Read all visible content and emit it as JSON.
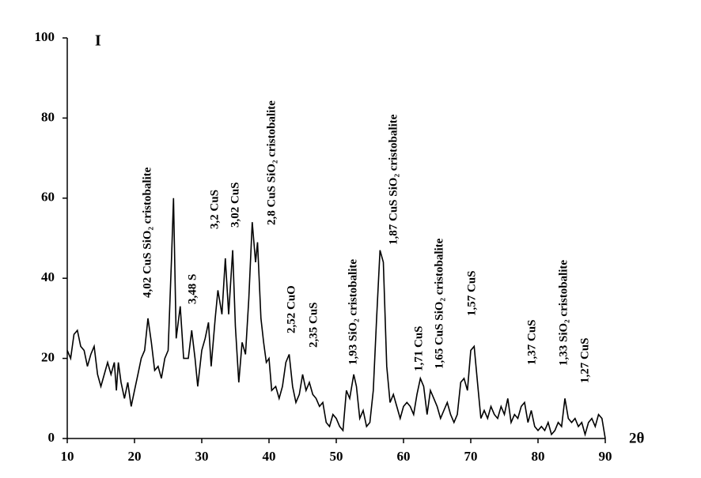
{
  "chart_data": {
    "type": "line",
    "y_label": "I",
    "x_label": "2θ",
    "xlim": [
      10,
      90
    ],
    "xticks": [
      10,
      20,
      30,
      40,
      50,
      60,
      70,
      80,
      90
    ],
    "ylim": [
      0,
      100
    ],
    "yticks": [
      0,
      20,
      40,
      60,
      80,
      100
    ],
    "color": "#000000",
    "x": [
      10,
      10.5,
      11,
      11.5,
      12,
      12.5,
      13,
      13.5,
      14,
      14.5,
      15,
      15.5,
      16,
      16.5,
      17,
      17.3,
      17.6,
      18,
      18.5,
      19,
      19.5,
      20,
      20.5,
      21,
      21.5,
      22,
      22.5,
      23,
      23.5,
      24,
      24.5,
      25,
      25.5,
      25.8,
      26.2,
      26.8,
      27.3,
      28,
      28.5,
      29,
      29.4,
      30,
      30.5,
      31,
      31.4,
      32,
      32.4,
      33,
      33.5,
      34,
      34.6,
      35,
      35.5,
      36,
      36.5,
      37,
      37.5,
      38,
      38.3,
      38.8,
      39.2,
      39.6,
      40,
      40.4,
      41,
      41.5,
      42,
      42.5,
      43,
      43.5,
      44,
      44.5,
      45,
      45.5,
      46,
      46.5,
      47,
      47.5,
      48,
      48.5,
      49,
      49.5,
      50,
      50.5,
      51,
      51.5,
      52,
      52.6,
      53,
      53.5,
      54,
      54.5,
      55,
      55.5,
      56,
      56.5,
      57,
      57.5,
      58,
      58.5,
      59,
      59.5,
      60,
      60.5,
      61,
      61.5,
      62,
      62.5,
      63,
      63.5,
      64,
      64.5,
      65,
      65.5,
      66,
      66.5,
      67,
      67.5,
      68,
      68.5,
      69,
      69.5,
      70,
      70.5,
      71,
      71.5,
      72,
      72.5,
      73,
      73.5,
      74,
      74.5,
      75,
      75.5,
      76,
      76.5,
      77,
      77.5,
      78,
      78.5,
      79,
      79.5,
      80,
      80.5,
      81,
      81.5,
      82,
      82.5,
      83,
      83.5,
      84,
      84.5,
      85,
      85.5,
      86,
      86.5,
      87,
      87.5,
      88,
      88.5,
      89,
      89.5,
      90
    ],
    "values": [
      22,
      20,
      26,
      27,
      23,
      22,
      18,
      21,
      23,
      16,
      13,
      16,
      19,
      16,
      19,
      12,
      19,
      14,
      10,
      14,
      8,
      12,
      16,
      20,
      22,
      30,
      24,
      17,
      18,
      15,
      20,
      22,
      45,
      60,
      25,
      33,
      20,
      20,
      27,
      20,
      13,
      22,
      25,
      29,
      18,
      30,
      37,
      31,
      45,
      31,
      47,
      28,
      14,
      24,
      21,
      35,
      54,
      44,
      49,
      30,
      24,
      19,
      20,
      12,
      13,
      10,
      13,
      19,
      21,
      13,
      9,
      11,
      16,
      12,
      14,
      11,
      10,
      8,
      9,
      4,
      3,
      6,
      5,
      3,
      2,
      12,
      10,
      16,
      13,
      5,
      7,
      3,
      4,
      12,
      30,
      47,
      44,
      18,
      9,
      11,
      8,
      5,
      8,
      9,
      8,
      6,
      11,
      15,
      13,
      6,
      12,
      10,
      8,
      5,
      7,
      9,
      6,
      4,
      6,
      14,
      15,
      12,
      22,
      23,
      14,
      5,
      7,
      5,
      8,
      6,
      5,
      8,
      6,
      10,
      4,
      6,
      5,
      8,
      9,
      4,
      7,
      3,
      2,
      3,
      2,
      4,
      1,
      2,
      4,
      3,
      10,
      5,
      4,
      5,
      3,
      4,
      1,
      4,
      5,
      3,
      6,
      5,
      0
    ],
    "annotations": [
      "4,02 CuS SiO₂ cristobalite",
      "3,48 S",
      "3,2 CuS",
      "3,02 CuS",
      "2,8 CuS SiO₂ cristobalite",
      "2,52 CuO",
      "2,35 CuS",
      "1,93 SiO₂ cristobalite",
      "1,87 CuS SiO₂ cristobalite",
      "1,71 CuS",
      "1,65 CuS SiO₂ cristobalite",
      "1,57 CuS",
      "1,37 CuS",
      "1,33 SiO₂ cristobalite",
      "1,27 CuS"
    ]
  }
}
